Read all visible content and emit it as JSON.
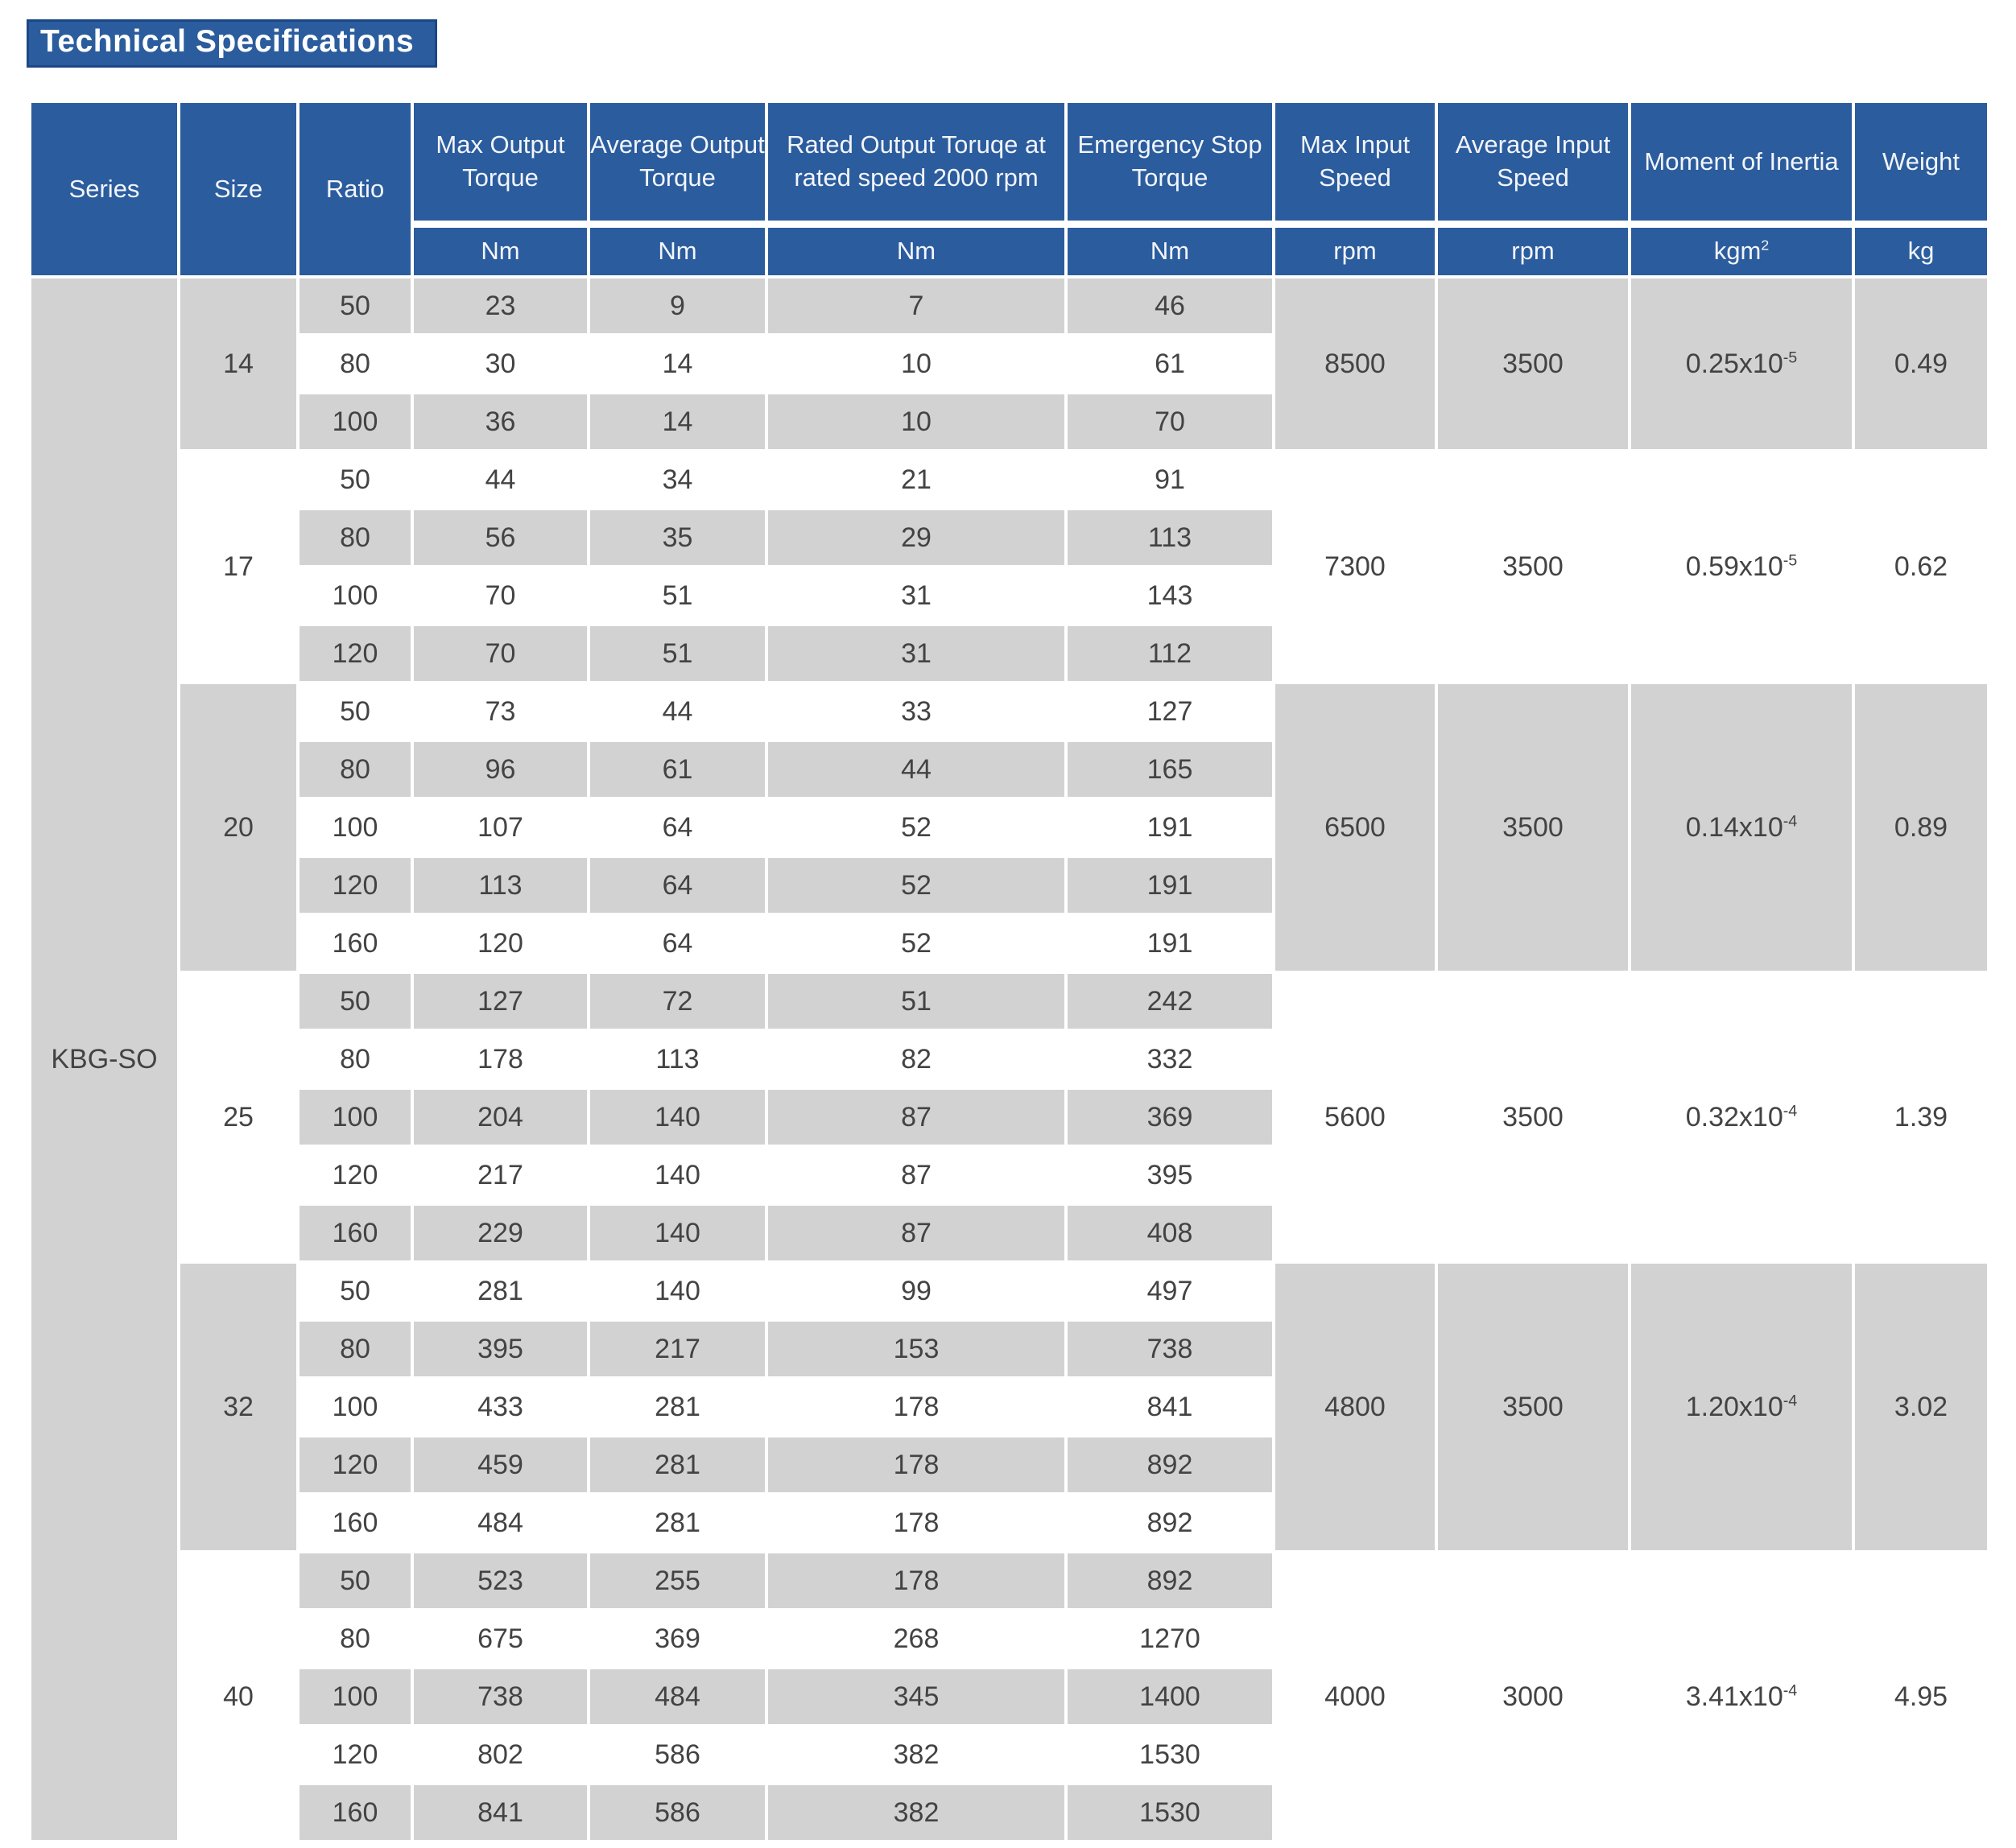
{
  "page": {
    "title": "Technical Specifications"
  },
  "colors": {
    "header_blue": "#2b5c9d",
    "title_border": "#1b4786",
    "row_gray": "#d2d2d2",
    "row_white": "#ffffff",
    "body_text": "#434343",
    "header_text": "#ffffff"
  },
  "table": {
    "series": "KBG-SO",
    "columns": [
      {
        "label": "Series"
      },
      {
        "label": "Size"
      },
      {
        "label": "Ratio"
      },
      {
        "label": "Max Output Torque",
        "unit": "Nm"
      },
      {
        "label": "Average Output Torque",
        "unit": "Nm"
      },
      {
        "label": "Rated Output Toruqe at rated speed 2000 rpm",
        "unit": "Nm"
      },
      {
        "label": "Emergency Stop Torque",
        "unit": "Nm"
      },
      {
        "label": "Max Input Speed",
        "unit": "rpm"
      },
      {
        "label": "Average Input Speed",
        "unit": "rpm"
      },
      {
        "label": "Moment of Inertia",
        "unit_base": "kgm",
        "unit_sup": "2"
      },
      {
        "label": "Weight",
        "unit": "kg"
      }
    ],
    "row_fields": [
      "Ratio",
      "Max Output Torque Nm",
      "Average Output Torque Nm",
      "Rated Output Torque Nm",
      "Emergency Stop Torque Nm"
    ],
    "groups": [
      {
        "size": "14",
        "rows": [
          [
            "50",
            "23",
            "9",
            "7",
            "46"
          ],
          [
            "80",
            "30",
            "14",
            "10",
            "61"
          ],
          [
            "100",
            "36",
            "14",
            "10",
            "70"
          ]
        ],
        "max_input_speed": "8500",
        "avg_input_speed": "3500",
        "inertia_base": "0.25x10",
        "inertia_exp": "-5",
        "weight": "0.49"
      },
      {
        "size": "17",
        "rows": [
          [
            "50",
            "44",
            "34",
            "21",
            "91"
          ],
          [
            "80",
            "56",
            "35",
            "29",
            "113"
          ],
          [
            "100",
            "70",
            "51",
            "31",
            "143"
          ],
          [
            "120",
            "70",
            "51",
            "31",
            "112"
          ]
        ],
        "max_input_speed": "7300",
        "avg_input_speed": "3500",
        "inertia_base": "0.59x10",
        "inertia_exp": "-5",
        "weight": "0.62"
      },
      {
        "size": "20",
        "rows": [
          [
            "50",
            "73",
            "44",
            "33",
            "127"
          ],
          [
            "80",
            "96",
            "61",
            "44",
            "165"
          ],
          [
            "100",
            "107",
            "64",
            "52",
            "191"
          ],
          [
            "120",
            "113",
            "64",
            "52",
            "191"
          ],
          [
            "160",
            "120",
            "64",
            "52",
            "191"
          ]
        ],
        "max_input_speed": "6500",
        "avg_input_speed": "3500",
        "inertia_base": "0.14x10",
        "inertia_exp": "-4",
        "weight": "0.89"
      },
      {
        "size": "25",
        "rows": [
          [
            "50",
            "127",
            "72",
            "51",
            "242"
          ],
          [
            "80",
            "178",
            "113",
            "82",
            "332"
          ],
          [
            "100",
            "204",
            "140",
            "87",
            "369"
          ],
          [
            "120",
            "217",
            "140",
            "87",
            "395"
          ],
          [
            "160",
            "229",
            "140",
            "87",
            "408"
          ]
        ],
        "max_input_speed": "5600",
        "avg_input_speed": "3500",
        "inertia_base": "0.32x10",
        "inertia_exp": "-4",
        "weight": "1.39"
      },
      {
        "size": "32",
        "rows": [
          [
            "50",
            "281",
            "140",
            "99",
            "497"
          ],
          [
            "80",
            "395",
            "217",
            "153",
            "738"
          ],
          [
            "100",
            "433",
            "281",
            "178",
            "841"
          ],
          [
            "120",
            "459",
            "281",
            "178",
            "892"
          ],
          [
            "160",
            "484",
            "281",
            "178",
            "892"
          ]
        ],
        "max_input_speed": "4800",
        "avg_input_speed": "3500",
        "inertia_base": "1.20x10",
        "inertia_exp": "-4",
        "weight": "3.02"
      },
      {
        "size": "40",
        "rows": [
          [
            "50",
            "523",
            "255",
            "178",
            "892"
          ],
          [
            "80",
            "675",
            "369",
            "268",
            "1270"
          ],
          [
            "100",
            "738",
            "484",
            "345",
            "1400"
          ],
          [
            "120",
            "802",
            "586",
            "382",
            "1530"
          ],
          [
            "160",
            "841",
            "586",
            "382",
            "1530"
          ]
        ],
        "max_input_speed": "4000",
        "avg_input_speed": "3000",
        "inertia_base": "3.41x10",
        "inertia_exp": "-4",
        "weight": "4.95"
      }
    ]
  }
}
